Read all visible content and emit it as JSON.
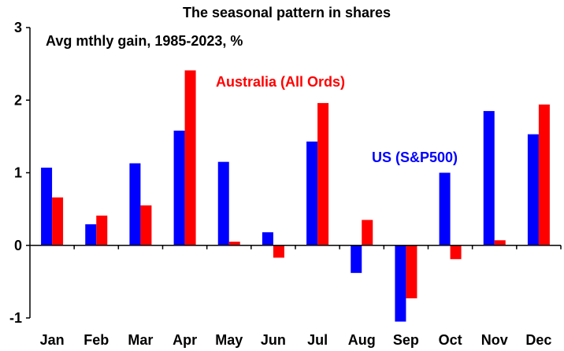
{
  "chart_data": {
    "type": "bar",
    "title": "The seasonal pattern in shares",
    "subtitle": "Avg mthly gain, 1985-2023, %",
    "xlabel": "",
    "ylabel": "",
    "categories": [
      "Jan",
      "Feb",
      "Mar",
      "Apr",
      "May",
      "Jun",
      "Jul",
      "Aug",
      "Sep",
      "Oct",
      "Nov",
      "Dec"
    ],
    "series": [
      {
        "name": "US (S&P500)",
        "color": "#0000ff",
        "values": [
          1.07,
          0.29,
          1.13,
          1.58,
          1.15,
          0.18,
          1.43,
          -0.38,
          -1.05,
          1.0,
          1.85,
          1.53
        ]
      },
      {
        "name": "Australia (All Ords)",
        "color": "#ff0000",
        "values": [
          0.66,
          0.41,
          0.55,
          2.41,
          0.05,
          -0.17,
          1.96,
          0.35,
          -0.73,
          -0.19,
          0.07,
          1.94
        ]
      }
    ],
    "ylim": [
      -1,
      3
    ],
    "yticks": [
      "-1",
      "0",
      "1",
      "2",
      "3"
    ],
    "grid": false,
    "legend": "inline labels"
  }
}
